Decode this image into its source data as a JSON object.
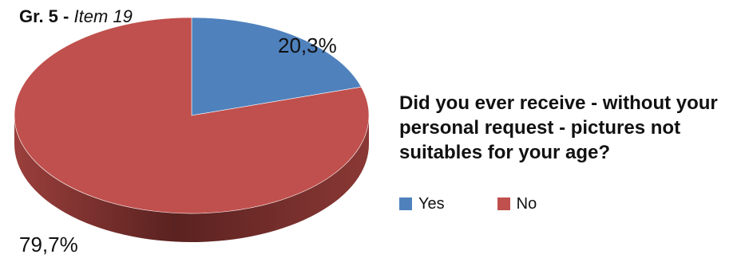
{
  "figure": {
    "number_label": "Gr. 5",
    "separator": " - ",
    "item_label": "Item 19"
  },
  "colors": {
    "yes": "#4f81bd",
    "yes_shade": "#2f4f78",
    "no": "#c0504d",
    "no_shade": "#6e2a28"
  },
  "chart_data": {
    "type": "pie",
    "style": "3d",
    "title": "Did you ever receive - without your personal request - pictures not suitables for your age?",
    "series": [
      {
        "values": [
          20.3,
          79.7
        ]
      }
    ],
    "categories": [
      "Yes",
      "No"
    ],
    "slices": [
      {
        "label": "Yes",
        "value": 20.3,
        "display": "20,3%",
        "color": "#4f81bd"
      },
      {
        "label": "No",
        "value": 79.7,
        "display": "79,7%",
        "color": "#c0504d"
      }
    ],
    "legend_position": "bottom-right"
  }
}
